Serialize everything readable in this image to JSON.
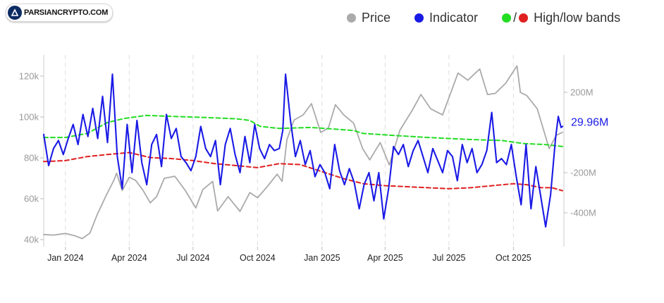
{
  "logo": {
    "text": "PARSIANCRYPTO.COM"
  },
  "legend": {
    "price": "Price",
    "indicator": "Indicator",
    "bands": "High/low bands",
    "bands_sep": "/"
  },
  "colors": {
    "price": "#aaaaaa",
    "indicator": "#1a1ae6",
    "high_band": "#22dd22",
    "low_band": "#e02020",
    "grid": "#dddddd",
    "logo_bg": "#0d2b63"
  },
  "chart_data": {
    "type": "line",
    "title": "",
    "x_ticks": [
      "Jan 2024",
      "Apr 2024",
      "Jul 2024",
      "Oct 2024",
      "Jan 2025",
      "Apr 2025",
      "Jul 2025",
      "Oct 2025"
    ],
    "x_range": [
      "2023-12-01",
      "2025-12-12"
    ],
    "y_left": {
      "ticks": [
        "40k",
        "60k",
        "80k",
        "100k",
        "120k"
      ],
      "ylim": [
        40000,
        120000
      ]
    },
    "y_right": {
      "ticks": [
        "-400M",
        "-200M",
        "200M"
      ],
      "ylim": [
        -520,
        320
      ],
      "unit": "M"
    },
    "last_value_label": "29.96M",
    "grid": "vertical dashed",
    "legend_position": "top-right",
    "series": [
      {
        "name": "Price",
        "axis": "left",
        "points": [
          [
            "2023-12-01",
            42500
          ],
          [
            "2023-12-15",
            42200
          ],
          [
            "2024-01-01",
            43000
          ],
          [
            "2024-01-15",
            41800
          ],
          [
            "2024-01-25",
            40500
          ],
          [
            "2024-02-05",
            43200
          ],
          [
            "2024-02-15",
            52000
          ],
          [
            "2024-02-28",
            61500
          ],
          [
            "2024-03-10",
            69000
          ],
          [
            "2024-03-14",
            72500
          ],
          [
            "2024-03-22",
            64000
          ],
          [
            "2024-04-01",
            70500
          ],
          [
            "2024-04-10",
            69000
          ],
          [
            "2024-04-20",
            64500
          ],
          [
            "2024-05-01",
            58000
          ],
          [
            "2024-05-10",
            61000
          ],
          [
            "2024-05-21",
            70000
          ],
          [
            "2024-06-05",
            71000
          ],
          [
            "2024-06-20",
            64000
          ],
          [
            "2024-07-05",
            55500
          ],
          [
            "2024-07-15",
            64500
          ],
          [
            "2024-07-29",
            68500
          ],
          [
            "2024-08-05",
            54000
          ],
          [
            "2024-08-20",
            61000
          ],
          [
            "2024-09-06",
            53800
          ],
          [
            "2024-09-20",
            63000
          ],
          [
            "2024-10-01",
            60500
          ],
          [
            "2024-10-15",
            66000
          ],
          [
            "2024-10-29",
            72000
          ],
          [
            "2024-11-05",
            68500
          ],
          [
            "2024-11-12",
            89000
          ],
          [
            "2024-11-22",
            98500
          ],
          [
            "2024-12-05",
            101000
          ],
          [
            "2024-12-17",
            106500
          ],
          [
            "2024-12-30",
            92500
          ],
          [
            "2025-01-10",
            94500
          ],
          [
            "2025-01-20",
            106000
          ],
          [
            "2025-02-01",
            101000
          ],
          [
            "2025-02-15",
            97000
          ],
          [
            "2025-02-28",
            84500
          ],
          [
            "2025-03-10",
            79000
          ],
          [
            "2025-03-25",
            87500
          ],
          [
            "2025-04-07",
            76500
          ],
          [
            "2025-04-22",
            93500
          ],
          [
            "2025-05-10",
            103500
          ],
          [
            "2025-05-22",
            111000
          ],
          [
            "2025-06-05",
            104000
          ],
          [
            "2025-06-22",
            101000
          ],
          [
            "2025-07-14",
            121500
          ],
          [
            "2025-07-28",
            118000
          ],
          [
            "2025-08-14",
            123500
          ],
          [
            "2025-08-25",
            111000
          ],
          [
            "2025-09-05",
            111500
          ],
          [
            "2025-09-20",
            116500
          ],
          [
            "2025-10-06",
            125000
          ],
          [
            "2025-10-11",
            112000
          ],
          [
            "2025-10-20",
            110500
          ],
          [
            "2025-11-04",
            104000
          ],
          [
            "2025-11-21",
            84500
          ],
          [
            "2025-12-01",
            91000
          ],
          [
            "2025-12-10",
            92500
          ]
        ]
      },
      {
        "name": "Indicator",
        "axis": "right",
        "points": [
          [
            "2023-12-01",
            -10
          ],
          [
            "2023-12-08",
            -165
          ],
          [
            "2023-12-15",
            -80
          ],
          [
            "2023-12-22",
            -40
          ],
          [
            "2023-12-29",
            -110
          ],
          [
            "2024-01-05",
            -30
          ],
          [
            "2024-01-12",
            40
          ],
          [
            "2024-01-19",
            -60
          ],
          [
            "2024-01-26",
            90
          ],
          [
            "2024-02-02",
            -20
          ],
          [
            "2024-02-09",
            120
          ],
          [
            "2024-02-16",
            -30
          ],
          [
            "2024-02-23",
            180
          ],
          [
            "2024-03-01",
            -50
          ],
          [
            "2024-03-08",
            290
          ],
          [
            "2024-03-15",
            -120
          ],
          [
            "2024-03-22",
            -280
          ],
          [
            "2024-03-29",
            40
          ],
          [
            "2024-04-05",
            -200
          ],
          [
            "2024-04-12",
            60
          ],
          [
            "2024-04-19",
            -150
          ],
          [
            "2024-04-26",
            -260
          ],
          [
            "2024-05-03",
            -60
          ],
          [
            "2024-05-10",
            -10
          ],
          [
            "2024-05-17",
            -170
          ],
          [
            "2024-05-24",
            90
          ],
          [
            "2024-05-31",
            -30
          ],
          [
            "2024-06-07",
            20
          ],
          [
            "2024-06-14",
            -120
          ],
          [
            "2024-06-21",
            -150
          ],
          [
            "2024-06-28",
            -190
          ],
          [
            "2024-07-05",
            -120
          ],
          [
            "2024-07-12",
            30
          ],
          [
            "2024-07-19",
            -80
          ],
          [
            "2024-07-26",
            -120
          ],
          [
            "2024-08-02",
            -40
          ],
          [
            "2024-08-09",
            -260
          ],
          [
            "2024-08-16",
            -60
          ],
          [
            "2024-08-23",
            20
          ],
          [
            "2024-08-30",
            -110
          ],
          [
            "2024-09-06",
            -200
          ],
          [
            "2024-09-13",
            -20
          ],
          [
            "2024-09-20",
            -150
          ],
          [
            "2024-09-27",
            40
          ],
          [
            "2024-10-04",
            -80
          ],
          [
            "2024-10-11",
            -130
          ],
          [
            "2024-10-18",
            -60
          ],
          [
            "2024-10-25",
            -90
          ],
          [
            "2024-11-01",
            -80
          ],
          [
            "2024-11-06",
            10
          ],
          [
            "2024-11-10",
            290
          ],
          [
            "2024-11-17",
            60
          ],
          [
            "2024-11-24",
            -120
          ],
          [
            "2024-12-01",
            -40
          ],
          [
            "2024-12-08",
            -160
          ],
          [
            "2024-12-15",
            -90
          ],
          [
            "2024-12-22",
            -220
          ],
          [
            "2024-12-29",
            -160
          ],
          [
            "2025-01-05",
            -200
          ],
          [
            "2025-01-12",
            -280
          ],
          [
            "2025-01-19",
            -60
          ],
          [
            "2025-01-26",
            -190
          ],
          [
            "2025-02-02",
            -260
          ],
          [
            "2025-02-09",
            -180
          ],
          [
            "2025-02-16",
            -250
          ],
          [
            "2025-02-23",
            -380
          ],
          [
            "2025-03-02",
            -260
          ],
          [
            "2025-03-09",
            -200
          ],
          [
            "2025-03-16",
            -340
          ],
          [
            "2025-03-23",
            -200
          ],
          [
            "2025-03-30",
            -430
          ],
          [
            "2025-04-06",
            -280
          ],
          [
            "2025-04-13",
            -70
          ],
          [
            "2025-04-20",
            -110
          ],
          [
            "2025-04-27",
            -60
          ],
          [
            "2025-05-04",
            -170
          ],
          [
            "2025-05-11",
            -90
          ],
          [
            "2025-05-18",
            -40
          ],
          [
            "2025-05-25",
            -120
          ],
          [
            "2025-06-01",
            -200
          ],
          [
            "2025-06-08",
            -80
          ],
          [
            "2025-06-15",
            -140
          ],
          [
            "2025-06-22",
            -200
          ],
          [
            "2025-06-29",
            -90
          ],
          [
            "2025-07-06",
            -120
          ],
          [
            "2025-07-13",
            -240
          ],
          [
            "2025-07-20",
            -60
          ],
          [
            "2025-07-27",
            -150
          ],
          [
            "2025-08-03",
            -80
          ],
          [
            "2025-08-10",
            -200
          ],
          [
            "2025-08-17",
            -160
          ],
          [
            "2025-08-24",
            -90
          ],
          [
            "2025-08-31",
            100
          ],
          [
            "2025-09-07",
            -150
          ],
          [
            "2025-09-14",
            -130
          ],
          [
            "2025-09-21",
            -160
          ],
          [
            "2025-09-28",
            -60
          ],
          [
            "2025-10-05",
            -220
          ],
          [
            "2025-10-12",
            -360
          ],
          [
            "2025-10-19",
            -60
          ],
          [
            "2025-10-26",
            -380
          ],
          [
            "2025-11-02",
            -170
          ],
          [
            "2025-11-09",
            -320
          ],
          [
            "2025-11-16",
            -470
          ],
          [
            "2025-11-23",
            -310
          ],
          [
            "2025-11-30",
            -30
          ],
          [
            "2025-12-04",
            80
          ],
          [
            "2025-12-08",
            25
          ],
          [
            "2025-12-10",
            30
          ]
        ]
      },
      {
        "name": "High band",
        "axis": "right",
        "style": "dashed",
        "points": [
          [
            "2023-12-01",
            -25
          ],
          [
            "2024-01-01",
            -25
          ],
          [
            "2024-02-01",
            -5
          ],
          [
            "2024-03-01",
            50
          ],
          [
            "2024-03-25",
            70
          ],
          [
            "2024-04-25",
            85
          ],
          [
            "2024-06-01",
            80
          ],
          [
            "2024-07-15",
            75
          ],
          [
            "2024-09-01",
            68
          ],
          [
            "2024-09-20",
            60
          ],
          [
            "2024-10-05",
            30
          ],
          [
            "2024-11-01",
            20
          ],
          [
            "2024-12-15",
            25
          ],
          [
            "2025-01-15",
            18
          ],
          [
            "2025-02-15",
            10
          ],
          [
            "2025-03-01",
            -5
          ],
          [
            "2025-04-15",
            -15
          ],
          [
            "2025-06-01",
            -25
          ],
          [
            "2025-08-01",
            -35
          ],
          [
            "2025-09-15",
            -40
          ],
          [
            "2025-10-15",
            -55
          ],
          [
            "2025-11-15",
            -60
          ],
          [
            "2025-12-10",
            -70
          ]
        ]
      },
      {
        "name": "Low band",
        "axis": "right",
        "style": "dashed",
        "points": [
          [
            "2023-12-01",
            -145
          ],
          [
            "2024-01-01",
            -140
          ],
          [
            "2024-02-01",
            -120
          ],
          [
            "2024-03-01",
            -110
          ],
          [
            "2024-04-01",
            -100
          ],
          [
            "2024-05-01",
            -125
          ],
          [
            "2024-06-01",
            -130
          ],
          [
            "2024-07-01",
            -140
          ],
          [
            "2024-08-01",
            -155
          ],
          [
            "2024-09-01",
            -165
          ],
          [
            "2024-10-01",
            -175
          ],
          [
            "2024-11-01",
            -155
          ],
          [
            "2024-12-01",
            -160
          ],
          [
            "2025-01-01",
            -195
          ],
          [
            "2025-02-01",
            -230
          ],
          [
            "2025-03-01",
            -255
          ],
          [
            "2025-04-01",
            -265
          ],
          [
            "2025-05-01",
            -270
          ],
          [
            "2025-06-01",
            -275
          ],
          [
            "2025-07-01",
            -280
          ],
          [
            "2025-08-01",
            -275
          ],
          [
            "2025-09-01",
            -265
          ],
          [
            "2025-10-01",
            -255
          ],
          [
            "2025-10-20",
            -260
          ],
          [
            "2025-11-10",
            -275
          ],
          [
            "2025-11-25",
            -275
          ],
          [
            "2025-12-10",
            -290
          ]
        ]
      }
    ]
  }
}
